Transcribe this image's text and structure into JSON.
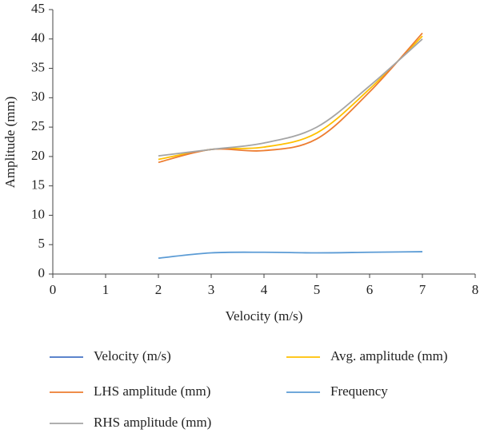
{
  "chart_data": {
    "type": "line",
    "x_label": "Velocity (m/s)",
    "y_label": "Amplitude (mm)",
    "x": [
      2,
      3,
      4,
      5,
      6,
      7
    ],
    "series": [
      {
        "name": "Velocity (m/s)",
        "color": "#4472c4",
        "values": [
          null,
          null,
          null,
          null,
          null,
          null
        ]
      },
      {
        "name": "Avg. amplitude (mm)",
        "color": "#ffc000",
        "values": [
          19.5,
          21.2,
          21.6,
          24.0,
          31.5,
          40.5
        ]
      },
      {
        "name": "LHS amplitude (mm)",
        "color": "#ed7d31",
        "values": [
          19.0,
          21.2,
          21.0,
          23.0,
          31.0,
          41.0
        ]
      },
      {
        "name": "Frequency",
        "color": "#5b9bd5",
        "values": [
          2.7,
          3.6,
          3.7,
          3.6,
          3.7,
          3.8
        ]
      },
      {
        "name": "RHS amplitude (mm)",
        "color": "#a5a5a5",
        "values": [
          20.1,
          21.2,
          22.3,
          25.0,
          32.0,
          40.0
        ]
      }
    ],
    "xlim": [
      0,
      8
    ],
    "xticks": [
      0,
      1,
      2,
      3,
      4,
      5,
      6,
      7,
      8
    ],
    "ylim": [
      0,
      45
    ],
    "yticks": [
      0,
      5,
      10,
      15,
      20,
      25,
      30,
      35,
      40,
      45
    ],
    "smooth": true
  }
}
